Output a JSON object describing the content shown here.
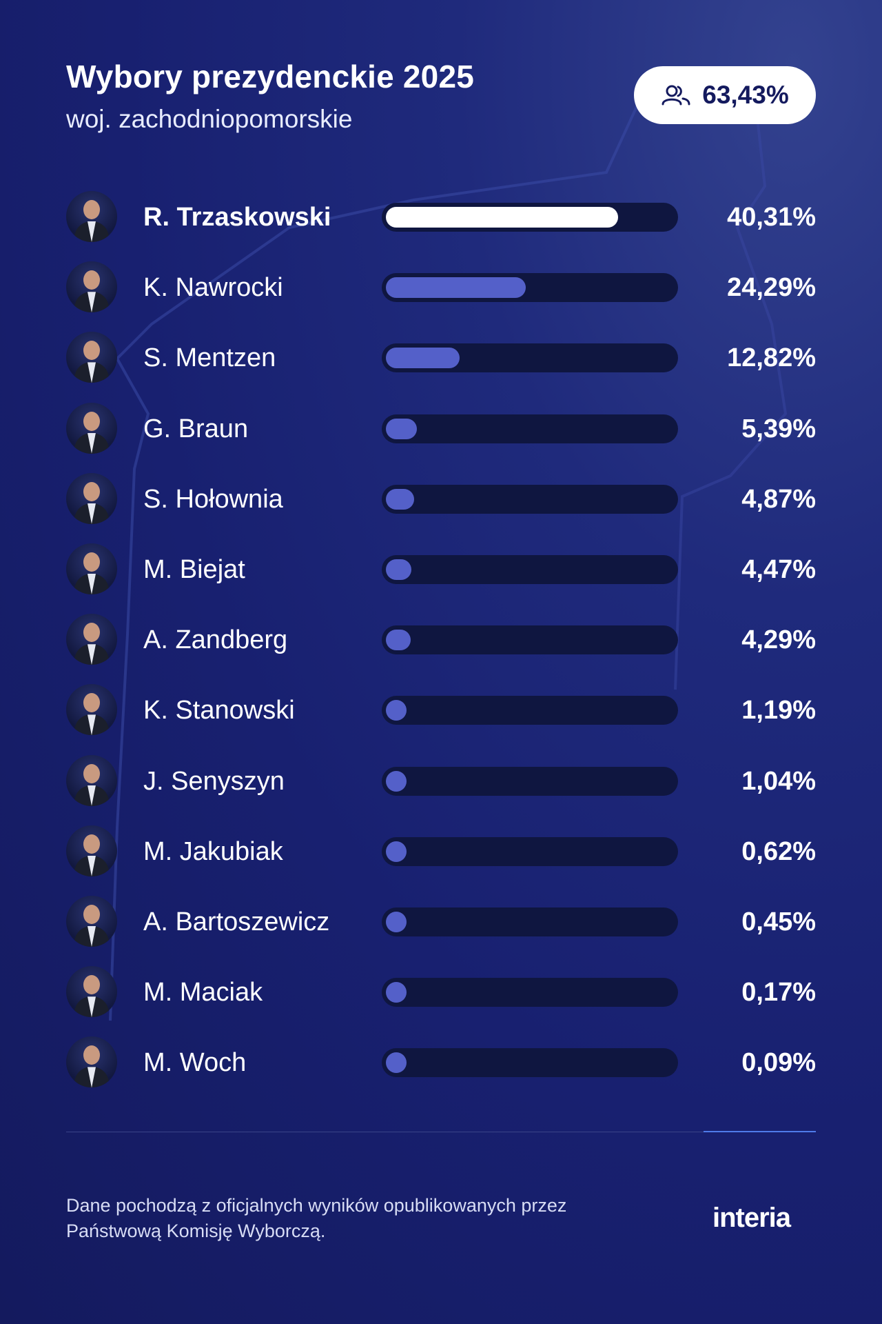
{
  "header": {
    "title": "Wybory prezydenckie 2025",
    "subtitle": "woj. zachodniopomorskie"
  },
  "turnout": {
    "icon": "people-icon",
    "value": "63,43%"
  },
  "chart_data": {
    "type": "bar",
    "title": "Wybory prezydenckie 2025",
    "subtitle": "woj. zachodniopomorskie",
    "orientation": "horizontal",
    "xlim": [
      0,
      50
    ],
    "grid": false,
    "categories": [
      "R. Trzaskowski",
      "K. Nawrocki",
      "S. Mentzen",
      "G. Braun",
      "S. Hołownia",
      "M. Biejat",
      "A. Zandberg",
      "K. Stanowski",
      "J. Senyszyn",
      "M. Jakubiak",
      "A. Bartoszewicz",
      "M. Maciak",
      "M. Woch"
    ],
    "values": [
      40.31,
      24.29,
      12.82,
      5.39,
      4.87,
      4.47,
      4.29,
      1.19,
      1.04,
      0.62,
      0.45,
      0.17,
      0.09
    ],
    "labels": [
      "40,31%",
      "24,29%",
      "12,82%",
      "5,39%",
      "4,87%",
      "4,47%",
      "4,29%",
      "1,19%",
      "1,04%",
      "0,62%",
      "0,45%",
      "0,17%",
      "0,09%"
    ],
    "colors": {
      "winner": "#ffffff",
      "others": "#5460c9",
      "track": "#0f1640"
    }
  },
  "footer": {
    "note": "Dane pochodzą z oficjalnych wyników opublikowanych przez Państwową Komisję Wyborczą.",
    "logo": "interia"
  }
}
